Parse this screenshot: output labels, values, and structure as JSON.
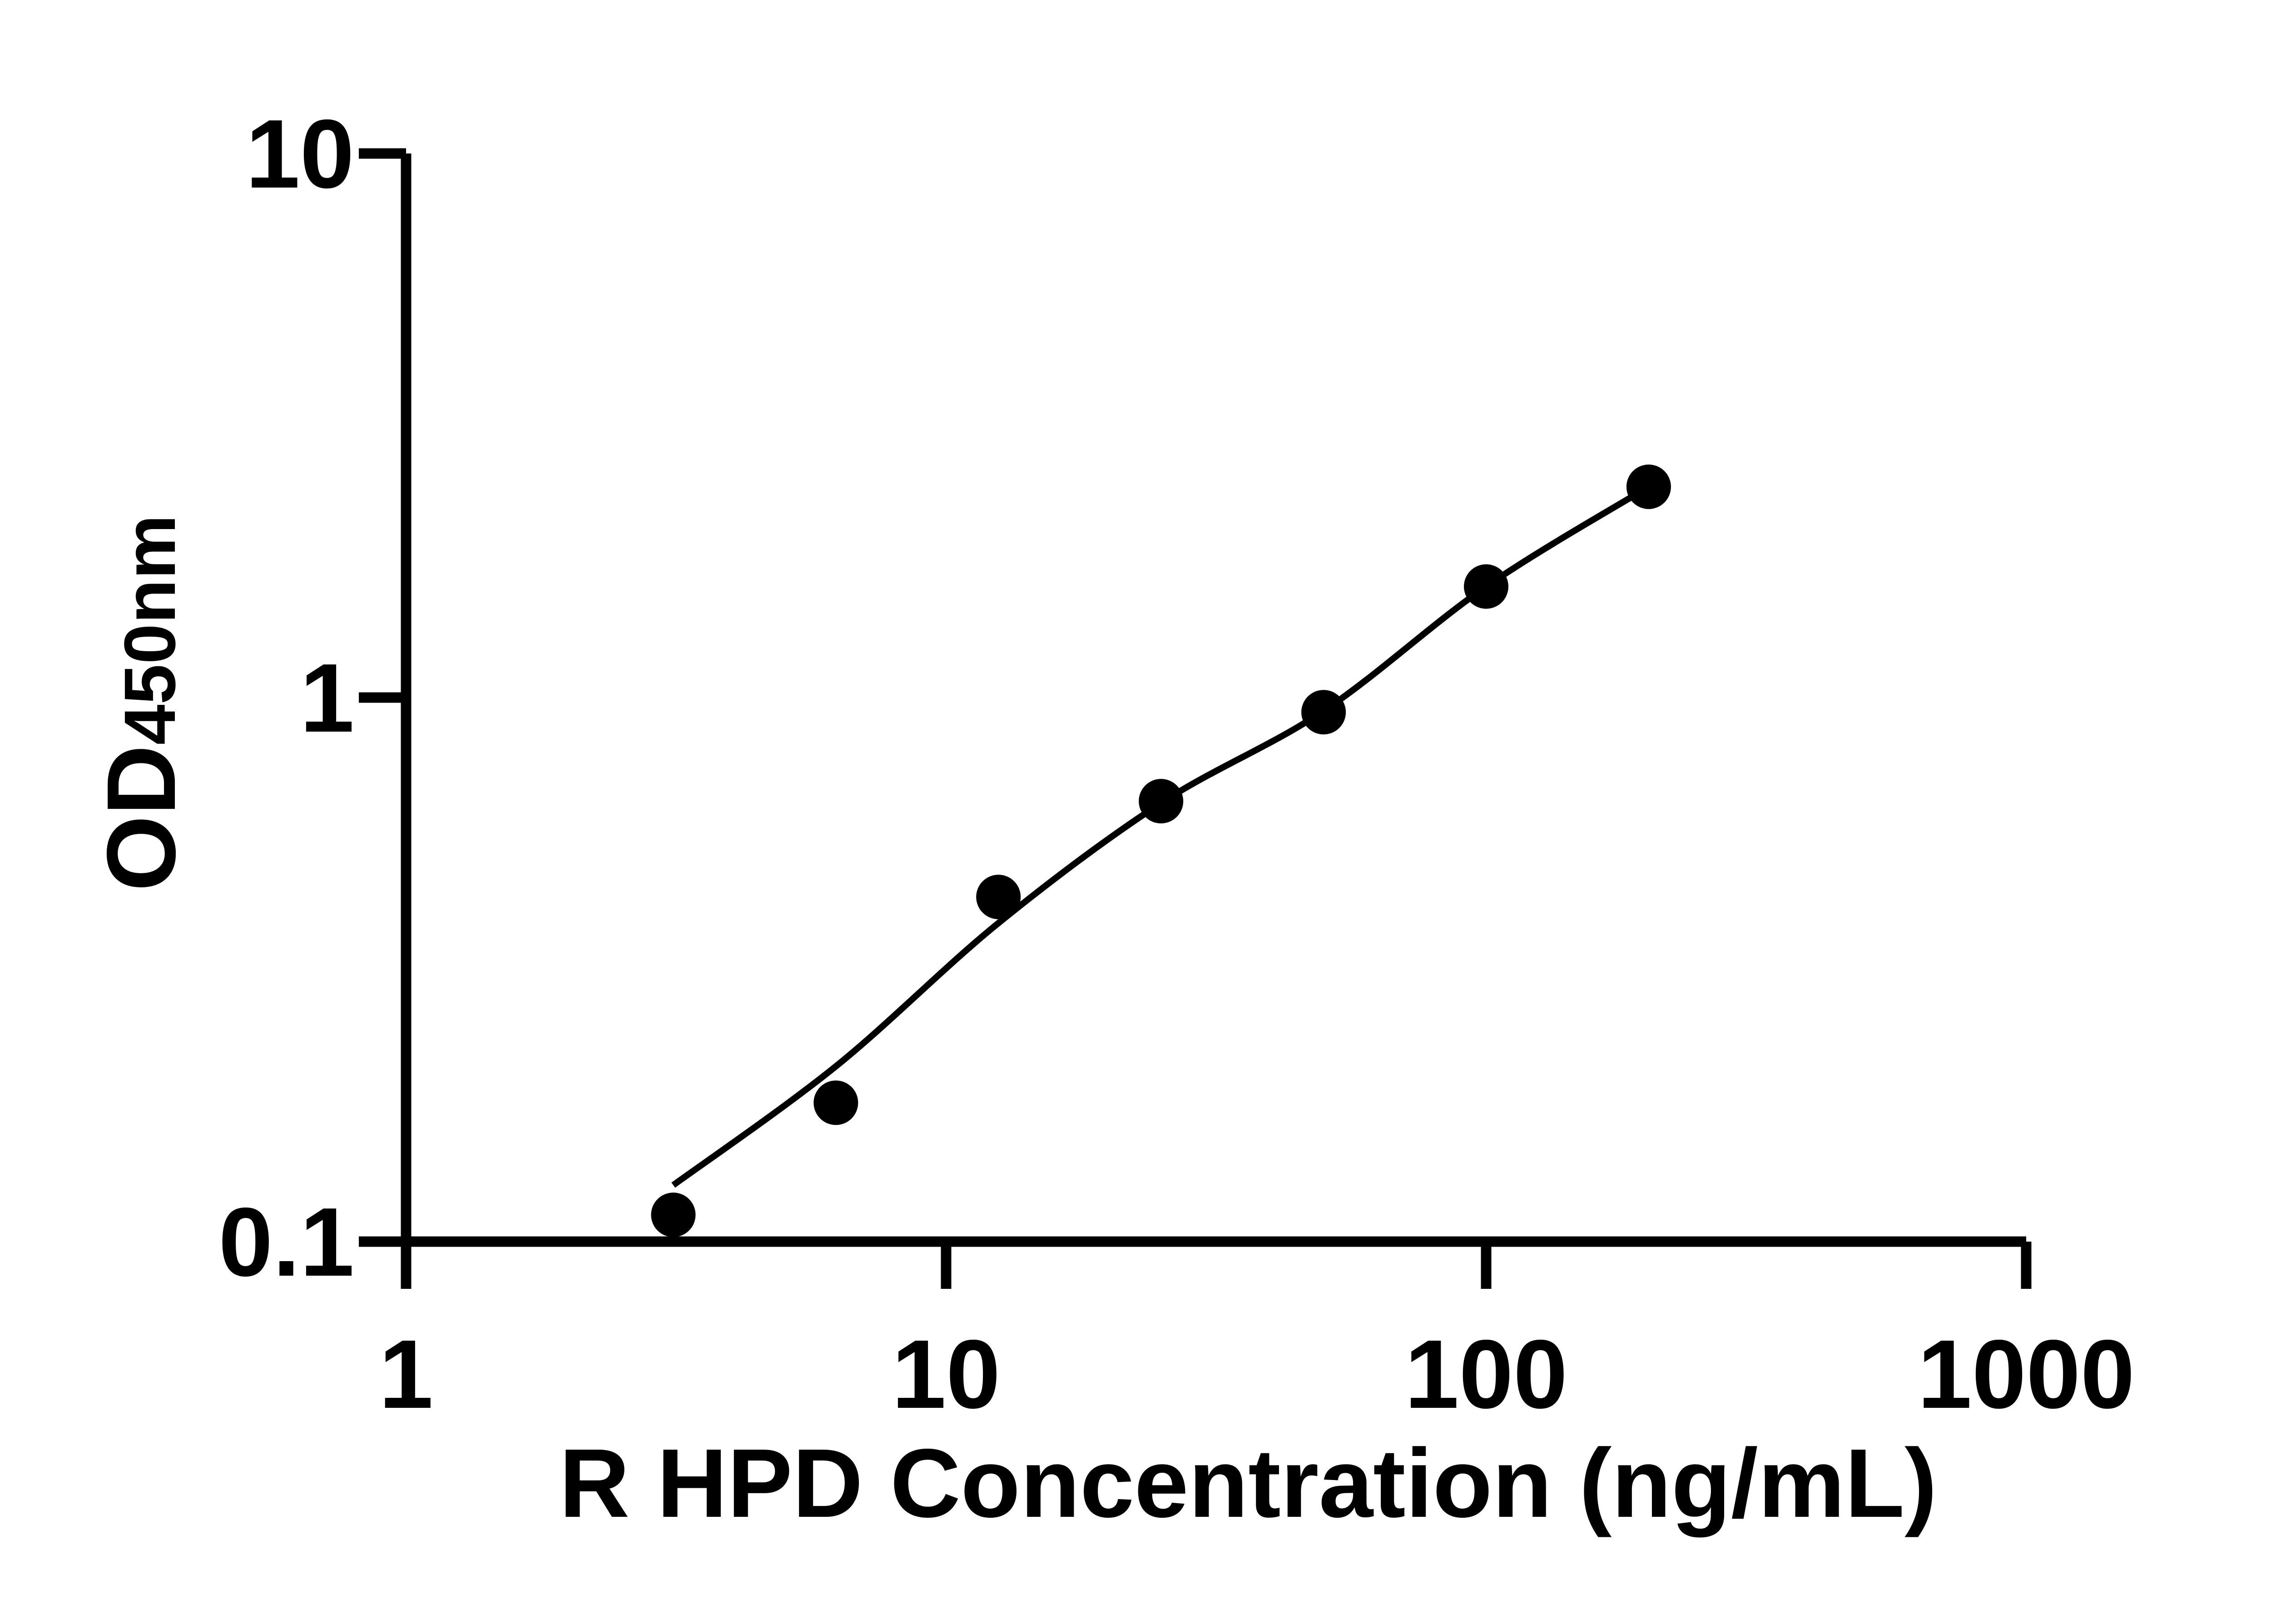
{
  "chart_data": {
    "type": "scatter",
    "title": "",
    "xlabel": "R HPD Concentration (ng/mL)",
    "ylabel": "OD450nm",
    "ylabel_parts": {
      "main": "OD",
      "sub": "450nm"
    },
    "x_scale": "log10",
    "y_scale": "log10",
    "xlim": [
      1,
      1000
    ],
    "ylim": [
      0.1,
      10
    ],
    "grid": "off",
    "legend": "none",
    "x_ticks": [
      {
        "value": 1,
        "label": "1"
      },
      {
        "value": 10,
        "label": "10"
      },
      {
        "value": 100,
        "label": "100"
      },
      {
        "value": 1000,
        "label": "1000"
      }
    ],
    "y_ticks": [
      {
        "value": 0.1,
        "label": "0.1"
      },
      {
        "value": 1,
        "label": "1"
      },
      {
        "value": 10,
        "label": "10"
      }
    ],
    "series": [
      {
        "name": "standard-curve-points",
        "marker": "filled-circle",
        "color": "#000000",
        "points": [
          {
            "x": 3.125,
            "y": 0.112
          },
          {
            "x": 6.25,
            "y": 0.18
          },
          {
            "x": 12.5,
            "y": 0.43
          },
          {
            "x": 25,
            "y": 0.645
          },
          {
            "x": 50,
            "y": 0.94
          },
          {
            "x": 100,
            "y": 1.6
          },
          {
            "x": 200,
            "y": 2.44
          }
        ]
      }
    ],
    "fit_line": {
      "name": "fitted-curve",
      "color": "#000000",
      "points": [
        {
          "x": 3.125,
          "y": 0.127
        },
        {
          "x": 6.25,
          "y": 0.21
        },
        {
          "x": 12.5,
          "y": 0.385
        },
        {
          "x": 25,
          "y": 0.64
        },
        {
          "x": 50,
          "y": 0.945
        },
        {
          "x": 100,
          "y": 1.6
        },
        {
          "x": 200,
          "y": 2.44
        }
      ]
    }
  },
  "colors": {
    "foreground": "#000000",
    "background": "#ffffff"
  }
}
